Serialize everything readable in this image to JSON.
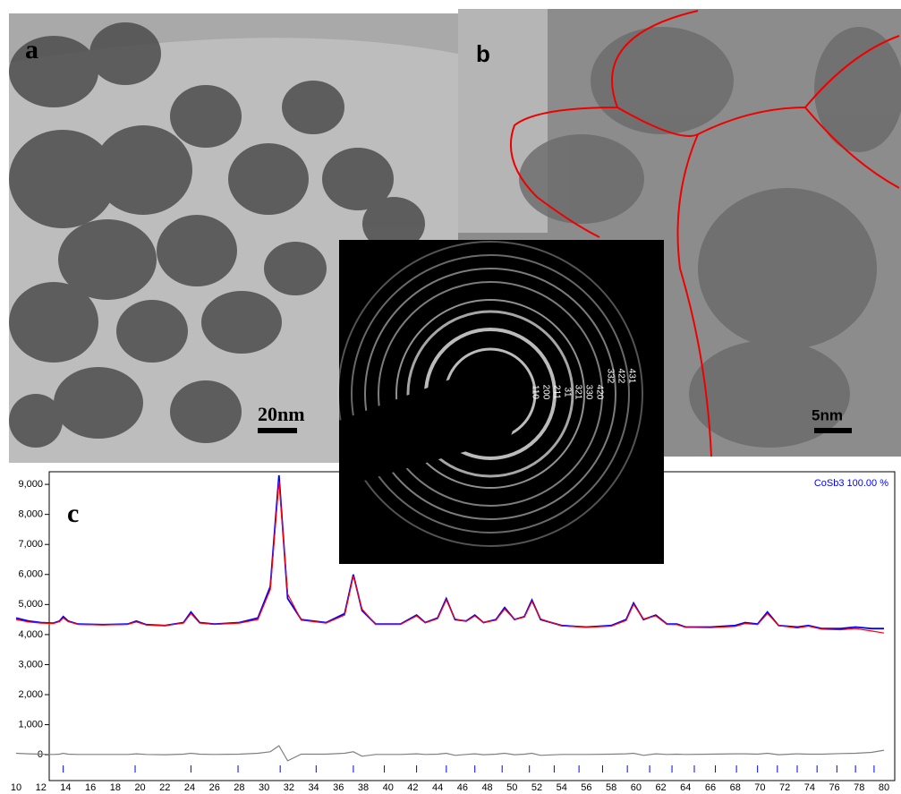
{
  "chart_data": {
    "type": "line",
    "x": [
      10,
      11,
      12,
      13,
      13.5,
      13.8,
      14.2,
      15,
      17,
      19,
      19.7,
      20.5,
      22,
      23.5,
      24.1,
      24.8,
      26,
      28,
      29.5,
      30.5,
      31.2,
      31.9,
      33,
      35,
      36.5,
      37.2,
      37.9,
      39,
      41,
      42.3,
      43,
      44,
      44.7,
      45.4,
      46.3,
      47,
      47.7,
      48.7,
      49.4,
      50.2,
      51,
      51.6,
      52.3,
      54,
      56,
      58,
      59.2,
      59.8,
      60.6,
      61.6,
      62.5,
      63.3,
      64,
      66,
      68,
      68.8,
      69.8,
      70.6,
      71.5,
      73,
      73.9,
      75,
      76.5,
      77.7,
      79,
      80
    ],
    "series": [
      {
        "color": "#0000ff",
        "values": [
          4550,
          4450,
          4400,
          4380,
          4450,
          4600,
          4450,
          4350,
          4330,
          4350,
          4450,
          4330,
          4300,
          4400,
          4750,
          4400,
          4350,
          4400,
          4550,
          5600,
          9300,
          5200,
          4500,
          4400,
          4700,
          6000,
          4800,
          4350,
          4350,
          4650,
          4400,
          4550,
          5200,
          4500,
          4450,
          4650,
          4400,
          4500,
          4900,
          4500,
          4600,
          5150,
          4500,
          4300,
          4250,
          4300,
          4500,
          5050,
          4500,
          4650,
          4350,
          4350,
          4250,
          4250,
          4300,
          4400,
          4350,
          4750,
          4300,
          4250,
          4300,
          4200,
          4200,
          4250,
          4200,
          4200
        ]
      },
      {
        "color": "#ff0000",
        "values": [
          4500,
          4420,
          4380,
          4370,
          4430,
          4550,
          4430,
          4340,
          4320,
          4340,
          4420,
          4320,
          4300,
          4380,
          4700,
          4380,
          4340,
          4380,
          4500,
          5500,
          9100,
          5350,
          4480,
          4380,
          4650,
          5950,
          4850,
          4340,
          4340,
          4620,
          4390,
          4530,
          5150,
          4520,
          4440,
          4620,
          4400,
          4480,
          4850,
          4500,
          4580,
          5100,
          4520,
          4290,
          4240,
          4280,
          4470,
          5000,
          4520,
          4620,
          4340,
          4330,
          4240,
          4230,
          4270,
          4370,
          4330,
          4700,
          4300,
          4220,
          4280,
          4180,
          4160,
          4200,
          4120,
          4050
        ]
      },
      {
        "color": "#808080",
        "values": [
          50,
          30,
          20,
          10,
          20,
          50,
          20,
          10,
          10,
          10,
          30,
          10,
          0,
          20,
          50,
          20,
          10,
          20,
          50,
          100,
          300,
          -200,
          20,
          20,
          50,
          100,
          -50,
          10,
          10,
          30,
          10,
          20,
          50,
          -20,
          10,
          30,
          0,
          20,
          50,
          0,
          20,
          50,
          -20,
          10,
          10,
          20,
          30,
          50,
          -20,
          30,
          10,
          20,
          10,
          20,
          30,
          30,
          20,
          50,
          0,
          30,
          20,
          20,
          40,
          50,
          80,
          150
        ]
      }
    ],
    "xlim": [
      10,
      80
    ],
    "ylim": [
      -860,
      9420
    ],
    "xticks": [
      10,
      12,
      14,
      16,
      18,
      20,
      22,
      24,
      26,
      28,
      30,
      32,
      34,
      36,
      38,
      40,
      42,
      44,
      46,
      48,
      50,
      52,
      54,
      56,
      58,
      60,
      62,
      64,
      66,
      68,
      70,
      72,
      74,
      76,
      78,
      80
    ],
    "yticks": [
      0,
      {
        "value": 1000,
        "label": "1,000"
      },
      {
        "value": 2000,
        "label": "2,000"
      },
      {
        "value": 3000,
        "label": "3,000"
      },
      {
        "value": 4000,
        "label": "4,000"
      },
      {
        "value": 5000,
        "label": "5,000"
      },
      {
        "value": 6000,
        "label": "6,000"
      },
      {
        "value": 7000,
        "label": "7,000"
      },
      {
        "value": 8000,
        "label": "8,000"
      },
      {
        "value": 9000,
        "label": "9,000"
      }
    ],
    "reflections": [
      13.8,
      19.6,
      24.1,
      27.9,
      31.3,
      34.2,
      37.2,
      39.7,
      42.3,
      44.7,
      47.0,
      49.2,
      51.4,
      53.4,
      55.4,
      57.3,
      59.3,
      61.1,
      62.9,
      64.7,
      66.4,
      68.1,
      69.8,
      71.4,
      73.0,
      74.6,
      76.2,
      77.7,
      79.2
    ],
    "reflection_color": "#0000ff",
    "phase_label": "CoSb3  100.00 %",
    "panel_label": "c"
  },
  "panels": {
    "a": {
      "label": "a",
      "scale_bar": "20nm"
    },
    "b": {
      "label": "b",
      "scale_bar": "5nm"
    },
    "inset": {
      "rings": [
        "110",
        "200",
        "211",
        "31",
        "321",
        "330",
        "420",
        "332",
        "422",
        "431"
      ]
    }
  }
}
